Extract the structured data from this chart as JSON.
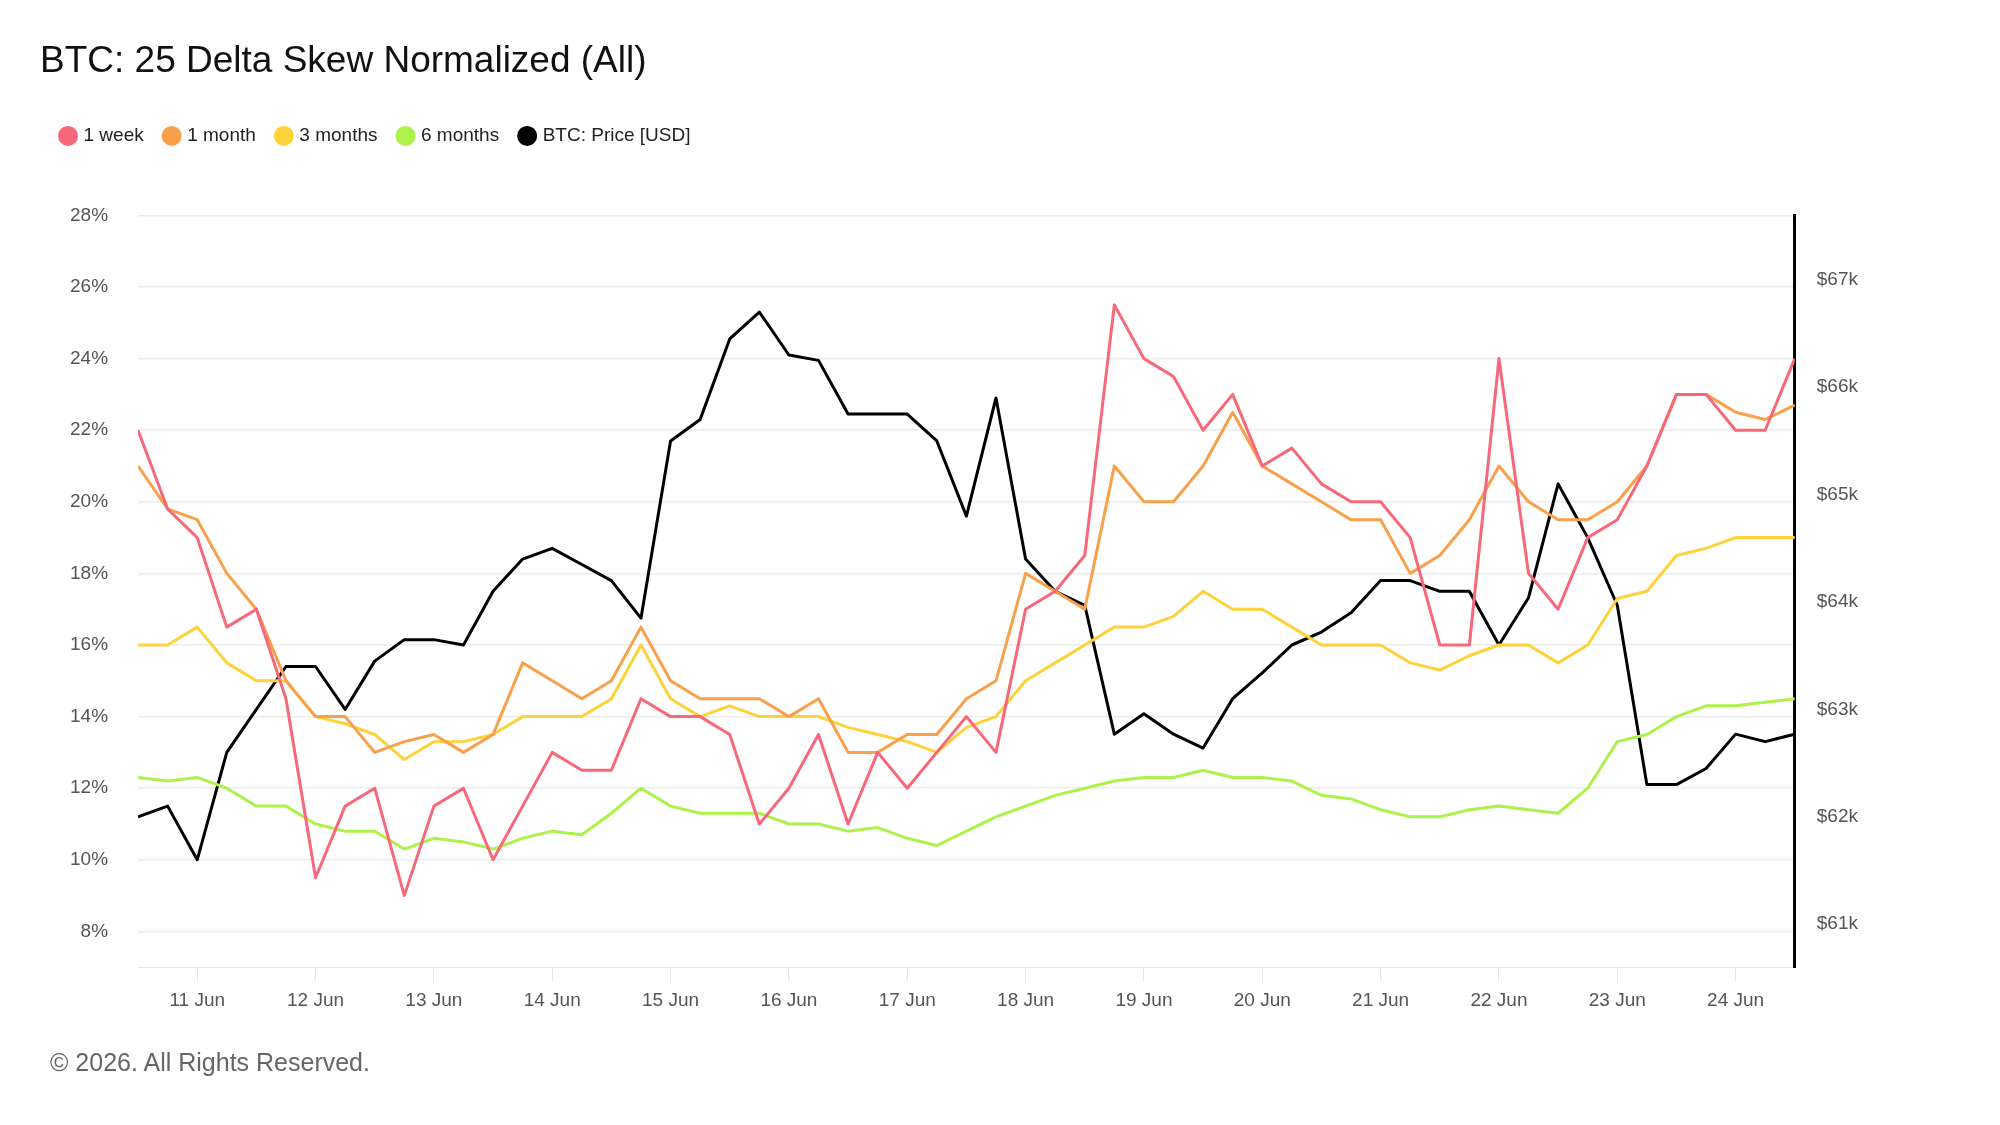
{
  "chart_data": {
    "type": "line",
    "title": "BTC: 25 Delta Skew Normalized (All)",
    "x": [
      "--06-10T12:00",
      "--06-10T18:00",
      "--06-11T00:00",
      "--06-11T06:00",
      "--06-11T12:00",
      "--06-11T18:00",
      "--06-12T00:00",
      "--06-12T06:00",
      "--06-12T12:00",
      "--06-12T18:00",
      "--06-13T00:00",
      "--06-13T06:00",
      "--06-13T12:00",
      "--06-13T18:00",
      "--06-14T00:00",
      "--06-14T06:00",
      "--06-14T12:00",
      "--06-14T18:00",
      "--06-15T00:00",
      "--06-15T06:00",
      "--06-15T12:00",
      "--06-15T18:00",
      "--06-16T00:00",
      "--06-16T06:00",
      "--06-16T12:00",
      "--06-16T18:00",
      "--06-17T00:00",
      "--06-17T06:00",
      "--06-17T12:00",
      "--06-17T18:00",
      "--06-18T00:00",
      "--06-18T06:00",
      "--06-18T12:00",
      "--06-18T18:00",
      "--06-19T00:00",
      "--06-19T06:00",
      "--06-19T12:00",
      "--06-19T18:00",
      "--06-20T00:00",
      "--06-20T06:00",
      "--06-20T12:00",
      "--06-20T18:00",
      "--06-21T00:00",
      "--06-21T06:00",
      "--06-21T12:00",
      "--06-21T18:00",
      "--06-22T00:00",
      "--06-22T06:00",
      "--06-22T12:00",
      "--06-22T18:00",
      "--06-23T00:00",
      "--06-23T06:00",
      "--06-23T12:00",
      "--06-23T18:00",
      "--06-24T00:00",
      "--06-24T06:00",
      "--06-24T12:00"
    ],
    "series": [
      {
        "name": "1 week",
        "color": "#f7687a",
        "values": [
          22,
          19.8,
          19,
          16.5,
          17,
          14.5,
          9.5,
          11.5,
          12,
          9,
          11.5,
          12,
          10,
          11.5,
          13,
          12.5,
          12.5,
          14.5,
          14,
          14,
          13.5,
          11,
          12,
          13.5,
          11,
          13,
          12,
          13,
          14,
          13,
          17,
          17.5,
          18.5,
          25.5,
          24,
          23.5,
          22,
          23,
          21,
          21.5,
          20.5,
          20,
          20,
          19,
          16,
          16,
          24,
          18,
          17,
          19,
          19.5,
          21,
          23,
          23,
          22,
          22,
          24
        ]
      },
      {
        "name": "1 month",
        "color": "#f9a04a",
        "values": [
          21,
          19.8,
          19.5,
          18,
          17,
          15,
          14,
          14,
          13,
          13.3,
          13.5,
          13,
          13.5,
          15.5,
          15,
          14.5,
          15,
          16.5,
          15,
          14.5,
          14.5,
          14.5,
          14,
          14.5,
          13,
          13,
          13.5,
          13.5,
          14.5,
          15,
          18,
          17.5,
          17,
          21,
          20,
          20,
          21,
          22.5,
          21,
          20.5,
          20,
          19.5,
          19.5,
          18,
          18.5,
          19.5,
          21,
          20,
          19.5,
          19.5,
          20,
          21,
          23,
          23,
          22.5,
          22.3,
          22.7
        ]
      },
      {
        "name": "3 months",
        "color": "#fdd23a",
        "values": [
          16,
          16,
          16.5,
          15.5,
          15,
          15,
          14,
          13.8,
          13.5,
          12.8,
          13.3,
          13.3,
          13.5,
          14,
          14,
          14,
          14.5,
          16,
          14.5,
          14,
          14.3,
          14,
          14,
          14,
          13.7,
          13.5,
          13.3,
          13,
          13.7,
          14,
          15,
          15.5,
          16,
          16.5,
          16.5,
          16.8,
          17.5,
          17,
          17,
          16.5,
          16,
          16,
          16,
          15.5,
          15.3,
          15.7,
          16,
          16,
          15.5,
          16,
          17.3,
          17.5,
          18.5,
          18.7,
          19,
          19,
          19
        ]
      },
      {
        "name": "6 months",
        "color": "#adf24a",
        "values": [
          12.3,
          12.2,
          12.3,
          12,
          11.5,
          11.5,
          11,
          10.8,
          10.8,
          10.3,
          10.6,
          10.5,
          10.3,
          10.6,
          10.8,
          10.7,
          11.3,
          12,
          11.5,
          11.3,
          11.3,
          11.3,
          11,
          11,
          10.8,
          10.9,
          10.6,
          10.4,
          10.8,
          11.2,
          11.5,
          11.8,
          12,
          12.2,
          12.3,
          12.3,
          12.5,
          12.3,
          12.3,
          12.2,
          11.8,
          11.7,
          11.4,
          11.2,
          11.2,
          11.4,
          11.5,
          11.4,
          11.3,
          12,
          13.3,
          13.5,
          14,
          14.3,
          14.3,
          14.4,
          14.5
        ]
      },
      {
        "name": "BTC: Price [USD]",
        "color": "#000000",
        "axis": "y2",
        "values": [
          62000,
          62100,
          61600,
          62600,
          63000,
          63400,
          63400,
          63000,
          63450,
          63650,
          63650,
          63600,
          64100,
          64400,
          64500,
          64350,
          64200,
          63850,
          65500,
          65700,
          66450,
          66700,
          66300,
          66250,
          65750,
          65750,
          65750,
          65500,
          64800,
          65900,
          64400,
          64100,
          63970,
          62770,
          62960,
          62770,
          62640,
          63100,
          63340,
          63600,
          63720,
          63900,
          64200,
          64200,
          64100,
          64100,
          63600,
          64040,
          65100,
          64600,
          63970,
          62300,
          62300,
          62450,
          62770,
          62700,
          62770
        ]
      }
    ],
    "xlim": [
      "--06-10T12:00",
      "--06-24T12:00"
    ],
    "xticks": [
      {
        "value": "--06-11",
        "label": "11 Jun"
      },
      {
        "value": "--06-12",
        "label": "12 Jun"
      },
      {
        "value": "--06-13",
        "label": "13 Jun"
      },
      {
        "value": "--06-14",
        "label": "14 Jun"
      },
      {
        "value": "--06-15",
        "label": "15 Jun"
      },
      {
        "value": "--06-16",
        "label": "16 Jun"
      },
      {
        "value": "--06-17",
        "label": "17 Jun"
      },
      {
        "value": "--06-18",
        "label": "18 Jun"
      },
      {
        "value": "--06-19",
        "label": "19 Jun"
      },
      {
        "value": "--06-20",
        "label": "20 Jun"
      },
      {
        "value": "--06-21",
        "label": "21 Jun"
      },
      {
        "value": "--06-22",
        "label": "22 Jun"
      },
      {
        "value": "--06-23",
        "label": "23 Jun"
      },
      {
        "value": "--06-24",
        "label": "24 Jun"
      }
    ],
    "ylim": [
      7,
      28
    ],
    "yticks": [
      {
        "value": 8,
        "label": "8%"
      },
      {
        "value": 10,
        "label": "10%"
      },
      {
        "value": 12,
        "label": "12%"
      },
      {
        "value": 14,
        "label": "14%"
      },
      {
        "value": 16,
        "label": "16%"
      },
      {
        "value": 18,
        "label": "18%"
      },
      {
        "value": 20,
        "label": "20%"
      },
      {
        "value": 22,
        "label": "22%"
      },
      {
        "value": 24,
        "label": "24%"
      },
      {
        "value": 26,
        "label": "26%"
      },
      {
        "value": 28,
        "label": "28%"
      }
    ],
    "y2lim": [
      60600,
      67600
    ],
    "y2ticks": [
      {
        "value": 61000,
        "label": "$61k"
      },
      {
        "value": 62000,
        "label": "$62k"
      },
      {
        "value": 63000,
        "label": "$63k"
      },
      {
        "value": 64000,
        "label": "$64k"
      },
      {
        "value": 65000,
        "label": "$65k"
      },
      {
        "value": 66000,
        "label": "$66k"
      },
      {
        "value": 67000,
        "label": "$67k"
      }
    ],
    "grid": "y",
    "legend": "top left",
    "marker": "none",
    "line_style": "solid",
    "annotations": [
      "© 2026. All Rights Reserved."
    ]
  }
}
